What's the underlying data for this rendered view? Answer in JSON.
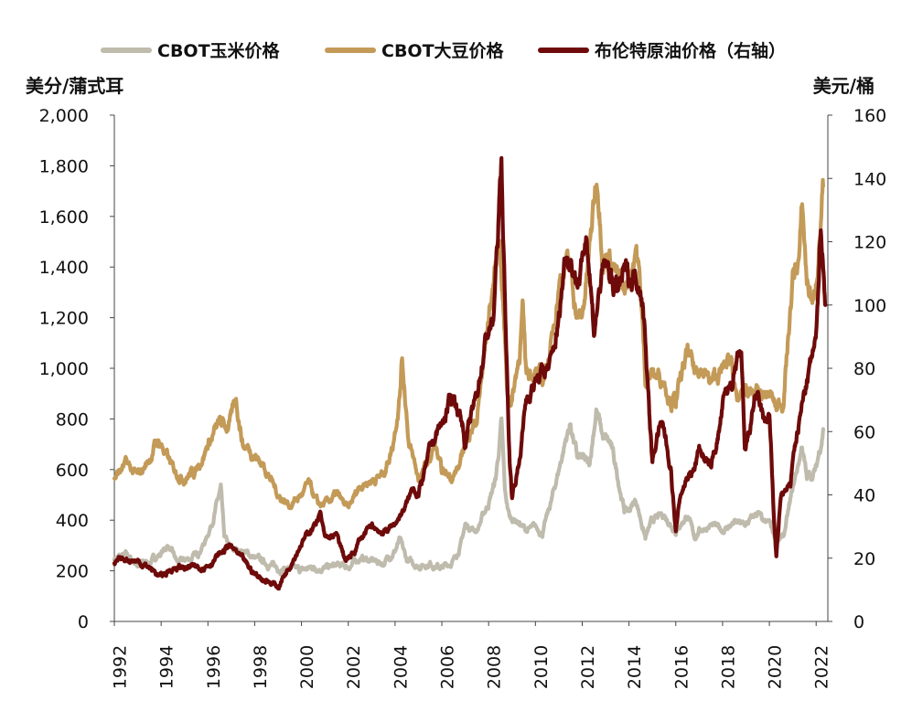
{
  "chart_data": {
    "type": "line",
    "legend_position": "top",
    "grid": false,
    "y_left_label": "美分/蒲式耳",
    "y_right_label": "美元/桶",
    "ylim_left": [
      0,
      2000
    ],
    "ylim_right": [
      0,
      160
    ],
    "xlim": [
      1992,
      2022.5
    ],
    "y_left_ticks": [
      "2,000",
      "1,800",
      "1,600",
      "1,400",
      "1,200",
      "1,000",
      "800",
      "600",
      "400",
      "200",
      "0"
    ],
    "y_right_ticks": [
      "160",
      "140",
      "120",
      "100",
      "80",
      "60",
      "40",
      "20",
      "0"
    ],
    "x_ticks": [
      "1992",
      "1994",
      "1996",
      "1998",
      "2000",
      "2002",
      "2004",
      "2006",
      "2008",
      "2010",
      "2012",
      "2014",
      "2016",
      "2018",
      "2020",
      "2022"
    ],
    "series": [
      {
        "name": "CBOT玉米价格",
        "axis": "left",
        "color": "#bfbbad",
        "points": [
          [
            1992.0,
            250
          ],
          [
            1992.5,
            260
          ],
          [
            1993.0,
            225
          ],
          [
            1993.5,
            235
          ],
          [
            1994.0,
            270
          ],
          [
            1994.3,
            300
          ],
          [
            1994.7,
            230
          ],
          [
            1995.0,
            240
          ],
          [
            1995.5,
            260
          ],
          [
            1995.9,
            320
          ],
          [
            1996.2,
            400
          ],
          [
            1996.4,
            470
          ],
          [
            1996.55,
            520
          ],
          [
            1996.7,
            330
          ],
          [
            1997.0,
            280
          ],
          [
            1997.5,
            280
          ],
          [
            1998.0,
            250
          ],
          [
            1998.5,
            230
          ],
          [
            1999.0,
            210
          ],
          [
            1999.5,
            210
          ],
          [
            2000.0,
            200
          ],
          [
            2000.5,
            215
          ],
          [
            2001.0,
            210
          ],
          [
            2001.5,
            220
          ],
          [
            2002.0,
            215
          ],
          [
            2002.5,
            250
          ],
          [
            2003.0,
            240
          ],
          [
            2003.5,
            230
          ],
          [
            2004.0,
            280
          ],
          [
            2004.2,
            320
          ],
          [
            2004.5,
            240
          ],
          [
            2005.0,
            220
          ],
          [
            2005.5,
            230
          ],
          [
            2006.0,
            210
          ],
          [
            2006.5,
            240
          ],
          [
            2006.8,
            300
          ],
          [
            2007.0,
            380
          ],
          [
            2007.5,
            360
          ],
          [
            2008.0,
            470
          ],
          [
            2008.3,
            560
          ],
          [
            2008.45,
            690
          ],
          [
            2008.55,
            780
          ],
          [
            2008.7,
            500
          ],
          [
            2008.9,
            410
          ],
          [
            2009.2,
            400
          ],
          [
            2009.6,
            360
          ],
          [
            2010.0,
            370
          ],
          [
            2010.3,
            350
          ],
          [
            2010.7,
            480
          ],
          [
            2011.0,
            600
          ],
          [
            2011.3,
            720
          ],
          [
            2011.5,
            780
          ],
          [
            2011.8,
            640
          ],
          [
            2012.0,
            640
          ],
          [
            2012.3,
            610
          ],
          [
            2012.6,
            840
          ],
          [
            2012.9,
            720
          ],
          [
            2013.2,
            700
          ],
          [
            2013.5,
            580
          ],
          [
            2013.8,
            440
          ],
          [
            2014.0,
            440
          ],
          [
            2014.3,
            480
          ],
          [
            2014.7,
            330
          ],
          [
            2015.0,
            400
          ],
          [
            2015.5,
            420
          ],
          [
            2016.0,
            360
          ],
          [
            2016.5,
            420
          ],
          [
            2016.8,
            330
          ],
          [
            2017.0,
            360
          ],
          [
            2017.5,
            380
          ],
          [
            2018.0,
            360
          ],
          [
            2018.5,
            390
          ],
          [
            2019.0,
            380
          ],
          [
            2019.5,
            430
          ],
          [
            2019.8,
            380
          ],
          [
            2020.0,
            390
          ],
          [
            2020.3,
            320
          ],
          [
            2020.6,
            330
          ],
          [
            2021.0,
            520
          ],
          [
            2021.3,
            650
          ],
          [
            2021.4,
            700
          ],
          [
            2021.6,
            560
          ],
          [
            2022.0,
            600
          ],
          [
            2022.3,
            760
          ]
        ]
      },
      {
        "name": "CBOT大豆价格",
        "axis": "left",
        "color": "#c39a57",
        "points": [
          [
            1992.0,
            570
          ],
          [
            1992.5,
            620
          ],
          [
            1993.0,
            570
          ],
          [
            1993.5,
            640
          ],
          [
            1993.8,
            710
          ],
          [
            1994.0,
            700
          ],
          [
            1994.5,
            600
          ],
          [
            1995.0,
            570
          ],
          [
            1995.5,
            600
          ],
          [
            1996.0,
            700
          ],
          [
            1996.5,
            780
          ],
          [
            1996.8,
            770
          ],
          [
            1997.0,
            800
          ],
          [
            1997.2,
            880
          ],
          [
            1997.5,
            700
          ],
          [
            1997.8,
            680
          ],
          [
            1998.0,
            660
          ],
          [
            1998.5,
            600
          ],
          [
            1999.0,
            500
          ],
          [
            1999.5,
            460
          ],
          [
            2000.0,
            500
          ],
          [
            2000.3,
            540
          ],
          [
            2000.7,
            460
          ],
          [
            2001.0,
            460
          ],
          [
            2001.5,
            500
          ],
          [
            2002.0,
            440
          ],
          [
            2002.5,
            540
          ],
          [
            2003.0,
            560
          ],
          [
            2003.5,
            580
          ],
          [
            2003.9,
            700
          ],
          [
            2004.2,
            900
          ],
          [
            2004.3,
            1050
          ],
          [
            2004.6,
            700
          ],
          [
            2005.0,
            560
          ],
          [
            2005.5,
            640
          ],
          [
            2005.7,
            700
          ],
          [
            2006.0,
            580
          ],
          [
            2006.5,
            580
          ],
          [
            2006.8,
            620
          ],
          [
            2007.0,
            720
          ],
          [
            2007.5,
            800
          ],
          [
            2008.0,
            1200
          ],
          [
            2008.3,
            1400
          ],
          [
            2008.45,
            1560
          ],
          [
            2008.6,
            1300
          ],
          [
            2008.8,
            900
          ],
          [
            2009.0,
            880
          ],
          [
            2009.3,
            1050
          ],
          [
            2009.45,
            1230
          ],
          [
            2009.6,
            980
          ],
          [
            2009.9,
            1000
          ],
          [
            2010.3,
            940
          ],
          [
            2010.7,
            1100
          ],
          [
            2011.0,
            1350
          ],
          [
            2011.3,
            1420
          ],
          [
            2011.5,
            1380
          ],
          [
            2011.8,
            1200
          ],
          [
            2012.0,
            1200
          ],
          [
            2012.3,
            1450
          ],
          [
            2012.55,
            1700
          ],
          [
            2012.65,
            1760
          ],
          [
            2012.9,
            1450
          ],
          [
            2013.2,
            1450
          ],
          [
            2013.5,
            1350
          ],
          [
            2013.8,
            1300
          ],
          [
            2014.0,
            1350
          ],
          [
            2014.3,
            1500
          ],
          [
            2014.5,
            1300
          ],
          [
            2014.7,
            960
          ],
          [
            2015.0,
            980
          ],
          [
            2015.5,
            960
          ],
          [
            2015.8,
            880
          ],
          [
            2016.0,
            870
          ],
          [
            2016.5,
            1060
          ],
          [
            2016.8,
            980
          ],
          [
            2017.0,
            1020
          ],
          [
            2017.5,
            940
          ],
          [
            2018.0,
            990
          ],
          [
            2018.4,
            1050
          ],
          [
            2018.6,
            860
          ],
          [
            2019.0,
            900
          ],
          [
            2019.5,
            890
          ],
          [
            2020.0,
            900
          ],
          [
            2020.3,
            840
          ],
          [
            2020.6,
            880
          ],
          [
            2021.0,
            1350
          ],
          [
            2021.3,
            1450
          ],
          [
            2021.4,
            1640
          ],
          [
            2021.6,
            1350
          ],
          [
            2021.9,
            1250
          ],
          [
            2022.0,
            1350
          ],
          [
            2022.3,
            1720
          ]
        ]
      },
      {
        "name": "布伦特原油价格（右轴）",
        "axis": "right",
        "color": "#6e0a0a",
        "points": [
          [
            1992.0,
            18
          ],
          [
            1992.5,
            20
          ],
          [
            1993.0,
            19
          ],
          [
            1993.5,
            17
          ],
          [
            1994.0,
            14
          ],
          [
            1994.5,
            17
          ],
          [
            1995.0,
            17
          ],
          [
            1995.5,
            17
          ],
          [
            1996.0,
            18
          ],
          [
            1996.5,
            21
          ],
          [
            1996.9,
            24
          ],
          [
            1997.2,
            22
          ],
          [
            1997.5,
            19
          ],
          [
            1998.0,
            15
          ],
          [
            1998.5,
            13
          ],
          [
            1999.0,
            11
          ],
          [
            1999.5,
            18
          ],
          [
            2000.0,
            25
          ],
          [
            2000.5,
            30
          ],
          [
            2000.8,
            34
          ],
          [
            2001.0,
            26
          ],
          [
            2001.5,
            27
          ],
          [
            2001.9,
            19
          ],
          [
            2002.2,
            21
          ],
          [
            2002.5,
            26
          ],
          [
            2003.0,
            30
          ],
          [
            2003.5,
            28
          ],
          [
            2004.0,
            31
          ],
          [
            2004.5,
            37
          ],
          [
            2004.8,
            43
          ],
          [
            2005.0,
            40
          ],
          [
            2005.5,
            54
          ],
          [
            2005.8,
            60
          ],
          [
            2006.0,
            62
          ],
          [
            2006.5,
            72
          ],
          [
            2006.9,
            62
          ],
          [
            2007.0,
            56
          ],
          [
            2007.5,
            72
          ],
          [
            2007.9,
            90
          ],
          [
            2008.2,
            95
          ],
          [
            2008.45,
            130
          ],
          [
            2008.55,
            145
          ],
          [
            2008.7,
            100
          ],
          [
            2008.9,
            50
          ],
          [
            2009.0,
            40
          ],
          [
            2009.3,
            50
          ],
          [
            2009.6,
            70
          ],
          [
            2009.9,
            75
          ],
          [
            2010.3,
            78
          ],
          [
            2010.7,
            82
          ],
          [
            2011.0,
            95
          ],
          [
            2011.3,
            118
          ],
          [
            2011.5,
            115
          ],
          [
            2011.8,
            108
          ],
          [
            2012.0,
            112
          ],
          [
            2012.2,
            124
          ],
          [
            2012.5,
            92
          ],
          [
            2012.8,
            108
          ],
          [
            2013.0,
            112
          ],
          [
            2013.5,
            104
          ],
          [
            2013.8,
            110
          ],
          [
            2014.0,
            108
          ],
          [
            2014.3,
            110
          ],
          [
            2014.5,
            108
          ],
          [
            2014.7,
            90
          ],
          [
            2014.9,
            62
          ],
          [
            2015.0,
            50
          ],
          [
            2015.3,
            62
          ],
          [
            2015.5,
            60
          ],
          [
            2015.8,
            48
          ],
          [
            2016.0,
            28
          ],
          [
            2016.2,
            40
          ],
          [
            2016.5,
            46
          ],
          [
            2016.8,
            48
          ],
          [
            2017.0,
            55
          ],
          [
            2017.5,
            48
          ],
          [
            2017.9,
            62
          ],
          [
            2018.0,
            68
          ],
          [
            2018.4,
            76
          ],
          [
            2018.8,
            84
          ],
          [
            2018.95,
            52
          ],
          [
            2019.2,
            62
          ],
          [
            2019.4,
            72
          ],
          [
            2019.8,
            62
          ],
          [
            2020.0,
            66
          ],
          [
            2020.2,
            32
          ],
          [
            2020.3,
            20
          ],
          [
            2020.5,
            40
          ],
          [
            2020.9,
            42
          ],
          [
            2021.0,
            52
          ],
          [
            2021.5,
            72
          ],
          [
            2021.8,
            82
          ],
          [
            2022.0,
            88
          ],
          [
            2022.2,
            128
          ],
          [
            2022.4,
            100
          ]
        ]
      }
    ]
  }
}
